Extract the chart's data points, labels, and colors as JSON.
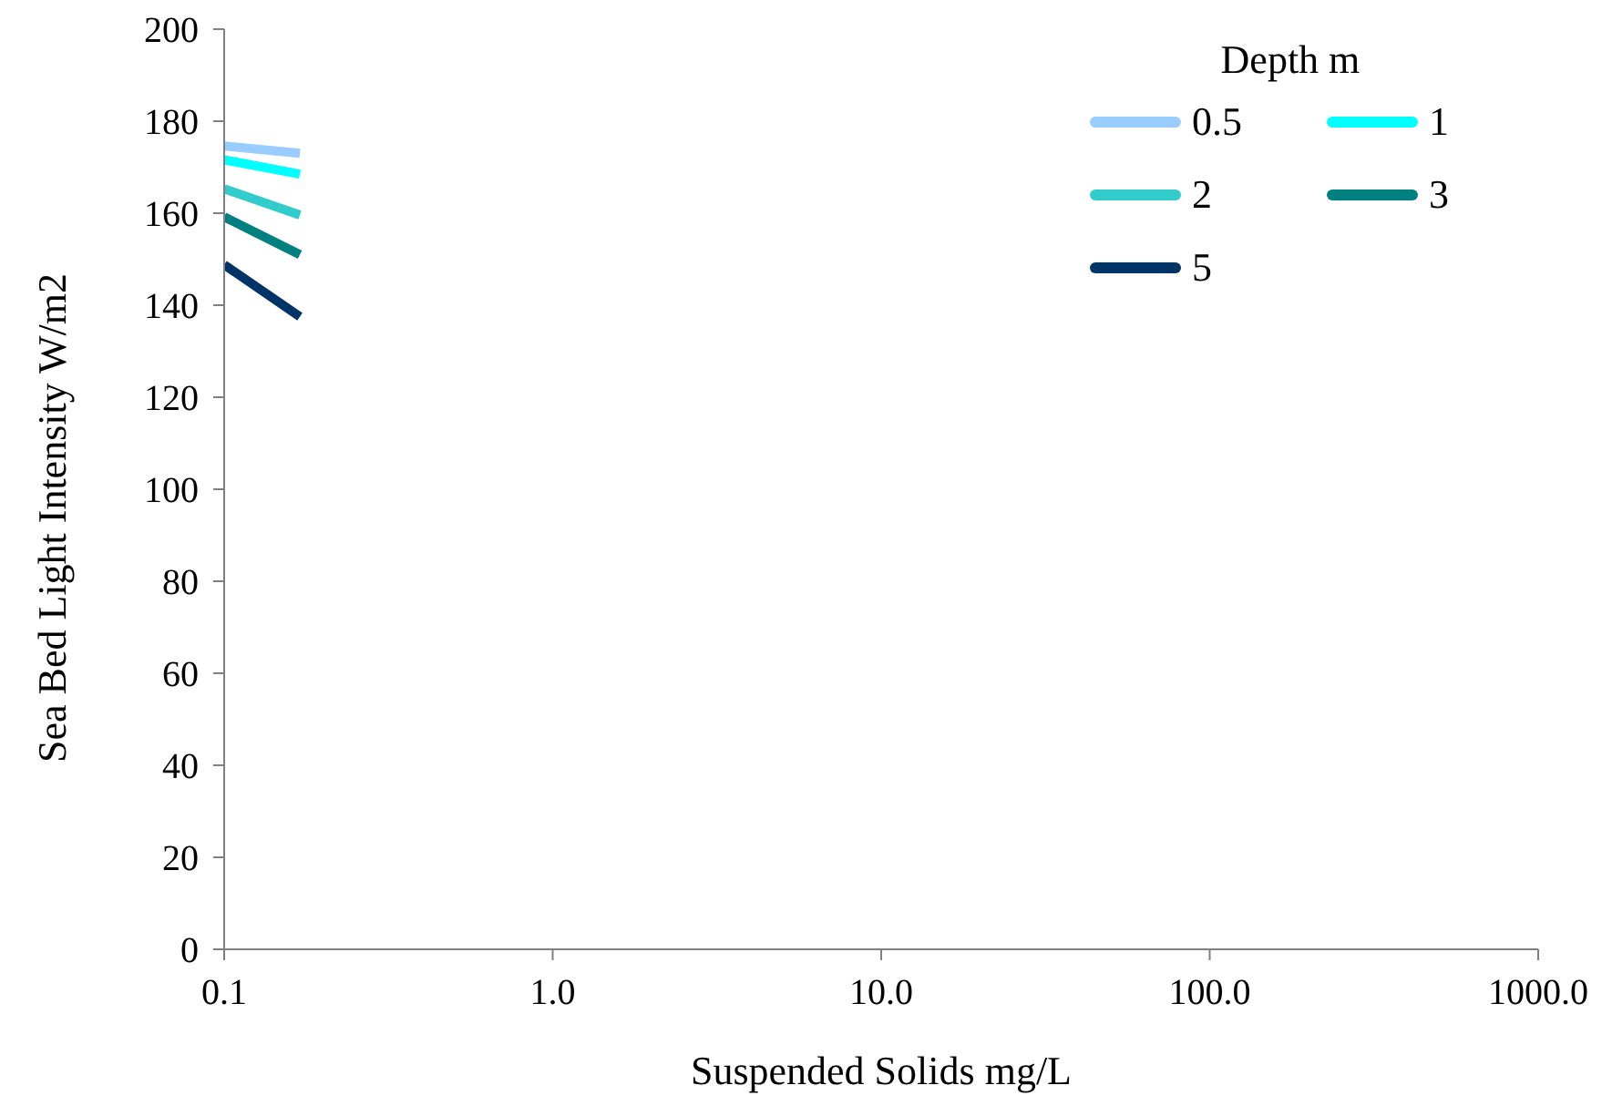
{
  "chart_data": {
    "type": "line",
    "xlabel": "Suspended Solids mg/L",
    "ylabel": "Sea Bed Light Intensity W/m2",
    "legend_title": "Depth m",
    "log": "x",
    "xlim": [
      0.1,
      1000
    ],
    "xticks": [
      {
        "value": 0.1,
        "label": "0.1"
      },
      {
        "value": 1,
        "label": "1.0"
      },
      {
        "value": 10,
        "label": "10.0"
      },
      {
        "value": 100,
        "label": "100.0"
      },
      {
        "value": 1000,
        "label": "1000.0"
      }
    ],
    "ylim": [
      0,
      200
    ],
    "yticks": [
      0,
      20,
      40,
      60,
      80,
      100,
      120,
      140,
      160,
      180,
      200
    ],
    "grid": false,
    "legend": "top right",
    "marker": "none",
    "line_style": "solid",
    "x": [
      0.1,
      0.17
    ],
    "series": [
      {
        "name": "0.5",
        "color": "#99ccff",
        "values": [
          174.6,
          173.0
        ]
      },
      {
        "name": "1",
        "color": "#00ffff",
        "values": [
          171.6,
          168.5
        ]
      },
      {
        "name": "2",
        "color": "#33cccc",
        "values": [
          165.3,
          159.6
        ]
      },
      {
        "name": "3",
        "color": "#008080",
        "values": [
          159.2,
          151.0
        ]
      },
      {
        "name": "5",
        "color": "#003366",
        "values": [
          148.8,
          137.5
        ]
      }
    ]
  }
}
